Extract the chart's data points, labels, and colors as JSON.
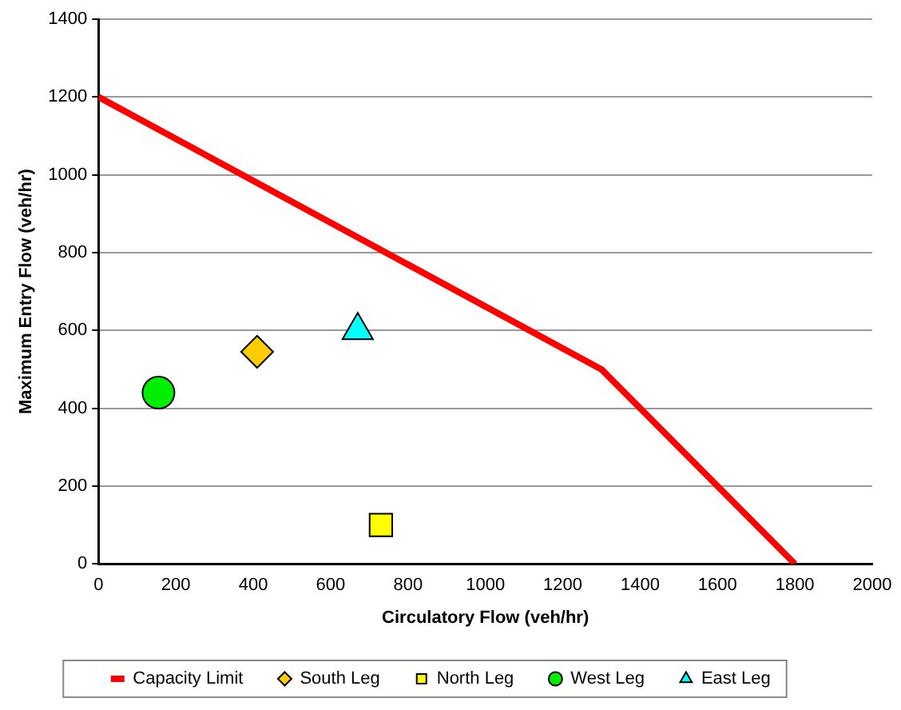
{
  "chart_data": {
    "type": "scatter",
    "xlabel": "Circulatory Flow (veh/hr)",
    "ylabel": "Maximum Entry Flow (veh/hr)",
    "xlim": [
      0,
      2000
    ],
    "xticks": [
      0,
      200,
      400,
      600,
      800,
      1000,
      1200,
      1400,
      1600,
      1800,
      2000
    ],
    "ylim": [
      0,
      1400
    ],
    "yticks": [
      0,
      200,
      400,
      600,
      800,
      1000,
      1200,
      1400
    ],
    "grid": "y",
    "legend": "bottom",
    "series": [
      {
        "name": "Capacity Limit",
        "type": "line",
        "marker": "none",
        "color": "#ff0000",
        "x": [
          0,
          1300,
          1800
        ],
        "values": [
          1200,
          500,
          0
        ]
      },
      {
        "name": "South Leg",
        "marker": "diamond",
        "color": "#ffcc00",
        "x": [
          410
        ],
        "values": [
          545
        ]
      },
      {
        "name": "North Leg",
        "marker": "square",
        "color": "#ffff00",
        "x": [
          730
        ],
        "values": [
          100
        ]
      },
      {
        "name": "West Leg",
        "marker": "circle",
        "color": "#00ee00",
        "x": [
          155
        ],
        "values": [
          440
        ]
      },
      {
        "name": "East Leg",
        "marker": "triangle",
        "color": "#00ffff",
        "x": [
          670
        ],
        "values": [
          600
        ]
      }
    ]
  }
}
